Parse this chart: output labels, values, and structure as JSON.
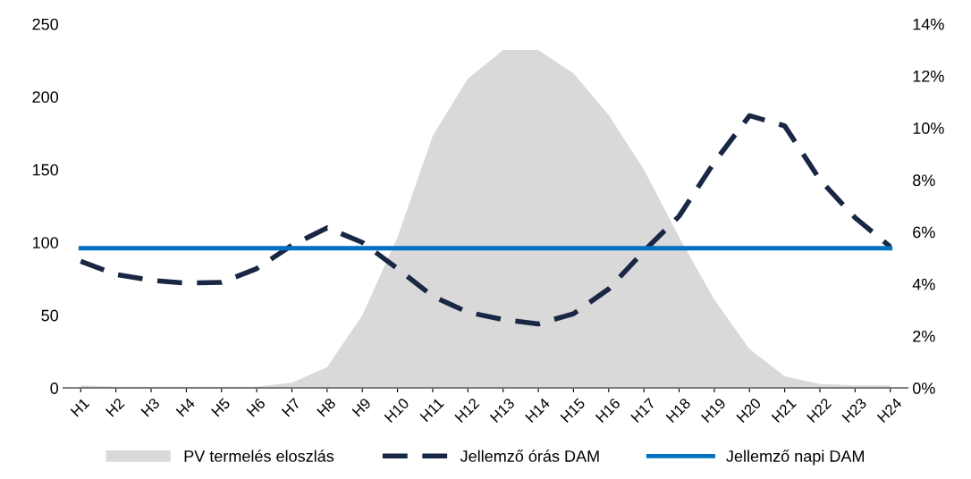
{
  "chart_data": {
    "type": "line",
    "categories": [
      "H1",
      "H2",
      "H3",
      "H4",
      "H5",
      "H6",
      "H7",
      "H8",
      "H9",
      "H10",
      "H11",
      "H12",
      "H13",
      "H14",
      "H15",
      "H16",
      "H17",
      "H18",
      "H19",
      "H20",
      "H21",
      "H22",
      "H23",
      "H24"
    ],
    "series": [
      {
        "name": "PV termelés eloszlás",
        "type": "area",
        "axis": "y2",
        "color": "#d9d9d9",
        "values": [
          0.1,
          0.05,
          0.05,
          0.05,
          0.05,
          0.05,
          0.2,
          0.8,
          2.8,
          5.8,
          9.7,
          11.9,
          13.0,
          13.0,
          12.1,
          10.5,
          8.4,
          5.8,
          3.4,
          1.5,
          0.45,
          0.15,
          0.1,
          0.1
        ]
      },
      {
        "name": "Jellemző órás DAM",
        "line_style": "dashed",
        "color": "#1a2744",
        "values": [
          87,
          78,
          74,
          72,
          72.5,
          82,
          98,
          110,
          100,
          82,
          63,
          52,
          47,
          44,
          51,
          68,
          94,
          118,
          155,
          187,
          180,
          143,
          117,
          97
        ]
      },
      {
        "name": "Jellemző napi DAM",
        "line_style": "solid",
        "color": "#0070c0",
        "values": [
          96,
          96,
          96,
          96,
          96,
          96,
          96,
          96,
          96,
          96,
          96,
          96,
          96,
          96,
          96,
          96,
          96,
          96,
          96,
          96,
          96,
          96,
          96,
          96
        ]
      }
    ],
    "ylim": [
      0,
      250
    ],
    "yticks": [
      0,
      50,
      100,
      150,
      200,
      250
    ],
    "y2lim": [
      0,
      14
    ],
    "y2ticks": [
      {
        "value": 0,
        "label": "0%"
      },
      {
        "value": 2,
        "label": "2%"
      },
      {
        "value": 4,
        "label": "4%"
      },
      {
        "value": 6,
        "label": "6%"
      },
      {
        "value": 8,
        "label": "8%"
      },
      {
        "value": 10,
        "label": "10%"
      },
      {
        "value": 12,
        "label": "12%"
      },
      {
        "value": 14,
        "label": "14%"
      }
    ],
    "grid": false,
    "legend": "bottom",
    "marker": "none"
  }
}
